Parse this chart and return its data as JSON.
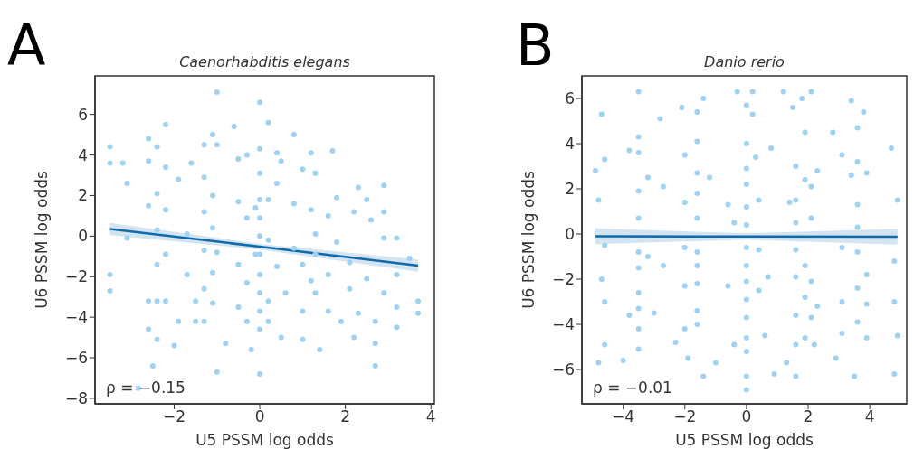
{
  "chart_data": [
    {
      "type": "scatter",
      "title": "Caenorhabditis elegans",
      "xlabel": "U5 PSSM log odds",
      "ylabel": "U6 PSSM log odds",
      "annotations": [
        "A",
        "ρ = −0.15"
      ],
      "xlim": [
        -3.85,
        4.08
      ],
      "xticks": [
        -2,
        0,
        2,
        4
      ],
      "ylim": [
        -8.27,
        7.9
      ],
      "yticks": [
        -8,
        -6,
        -4,
        -2,
        0,
        2,
        4,
        6
      ],
      "series": [
        {
          "marker": "circle",
          "color": "#9fd2f0",
          "x": [
            -3.5,
            -3.5,
            -3.5,
            -3.5,
            -3.2,
            -3.1,
            -3.1,
            -2.84,
            -2.6,
            -2.6,
            -2.6,
            -2.6,
            -2.6,
            -2.5,
            -2.4,
            -2.4,
            -2.4,
            -2.4,
            -2.4,
            -2.4,
            -2.2,
            -2.2,
            -2.2,
            -2.2,
            -2.2,
            -2.0,
            -1.9,
            -1.9,
            -1.7,
            -1.7,
            -1.6,
            -1.5,
            -1.5,
            -1.3,
            -1.3,
            -1.3,
            -1.3,
            -1.3,
            -1.3,
            -1.1,
            -1.1,
            -1.1,
            -1.1,
            -1.1,
            -1.0,
            -1.0,
            -1.0,
            -1.0,
            -0.8,
            -0.6,
            -0.5,
            -0.5,
            -0.5,
            -0.5,
            -0.3,
            -0.3,
            -0.3,
            -0.3,
            -0.2,
            -0.1,
            -0.1,
            0,
            0,
            0,
            0,
            0,
            0,
            0,
            0,
            0,
            0,
            0,
            0,
            0.2,
            0.2,
            0.2,
            0.2,
            0.2,
            0.4,
            0.4,
            0.4,
            0.5,
            0.5,
            0.6,
            0.8,
            0.8,
            0.8,
            1.0,
            1.0,
            1.0,
            1.0,
            1.2,
            1.2,
            1.2,
            1.3,
            1.3,
            1.3,
            1.3,
            1.4,
            1.6,
            1.6,
            1.6,
            1.7,
            1.8,
            1.8,
            1.9,
            2.1,
            2.1,
            2.2,
            2.2,
            2.3,
            2.3,
            2.5,
            2.5,
            2.6,
            2.7,
            2.7,
            2.7,
            2.9,
            2.9,
            2.9,
            2.9,
            3.2,
            3.2,
            3.2,
            3.2,
            3.5,
            3.7,
            3.7
          ],
          "values": [
            4.4,
            3.6,
            -1.9,
            -2.7,
            3.6,
            2.6,
            -0.1,
            -7.5,
            4.8,
            3.7,
            1.5,
            -3.2,
            -4.6,
            -6.4,
            4.4,
            2.1,
            0.3,
            -1.4,
            -3.2,
            -5.1,
            5.5,
            3.4,
            1.3,
            -0.9,
            -3.2,
            -5.4,
            2.8,
            -4.2,
            0.1,
            -1.9,
            3.6,
            -3.2,
            -4.2,
            4.5,
            2.9,
            1.2,
            -0.7,
            -2.6,
            -4.2,
            5.0,
            2.0,
            0.4,
            -1.8,
            -3.3,
            7.1,
            4.5,
            -0.8,
            -6.7,
            -5.3,
            5.4,
            3.8,
            1.7,
            -1.4,
            -3.5,
            4.0,
            0.9,
            -2.3,
            -4.2,
            -5.6,
            1.4,
            -0.9,
            6.6,
            4.3,
            3.1,
            1.8,
            0.9,
            0,
            -0.9,
            -1.9,
            -2.8,
            -3.7,
            -4.6,
            -6.8,
            5.6,
            1.8,
            -0.2,
            -3.2,
            -4.2,
            4.1,
            2.6,
            -1.5,
            -5.0,
            3.7,
            -2.8,
            5.0,
            1.6,
            -0.6,
            3.3,
            -1.4,
            -3.7,
            -5.1,
            4.1,
            1.3,
            -2.2,
            3.1,
            0.1,
            -0.9,
            -2.8,
            -5.6,
            1.0,
            -1.9,
            -3.7,
            4.2,
            1.9,
            -0.3,
            -4.2,
            -1.3,
            -2.6,
            1.2,
            -5.0,
            2.4,
            -3.8,
            1.8,
            -2.1,
            0.8,
            -5.3,
            -6.4,
            -4.2,
            2.5,
            1.2,
            -0.1,
            -2.8,
            -0.1,
            -1.9,
            -3.5,
            -4.5,
            -1.1,
            -3.2,
            -3.8
          ]
        },
        {
          "type": "line",
          "color": "#0f6aac",
          "x": [
            -3.5,
            0,
            3.7
          ],
          "values": [
            0.35,
            -0.52,
            -1.45
          ],
          "lower": [
            0.05,
            -0.66,
            -1.75
          ],
          "upper": [
            0.65,
            -0.38,
            -1.15
          ]
        }
      ]
    },
    {
      "type": "scatter",
      "title": "Danio rerio",
      "xlabel": "U5 PSSM log odds",
      "ylabel": "U6 PSSM log odds",
      "annotations": [
        "B",
        "ρ = −0.01"
      ],
      "xlim": [
        -5.34,
        5.2
      ],
      "xticks": [
        -4,
        -2,
        0,
        2,
        4
      ],
      "ylim": [
        -7.52,
        7.0
      ],
      "yticks": [
        -6,
        -4,
        -2,
        0,
        2,
        4,
        6
      ],
      "series": [
        {
          "marker": "circle",
          "color": "#9fd2f0",
          "x": [
            -4.9,
            -4.8,
            -4.8,
            -4.7,
            -4.6,
            -4.6,
            -4.6,
            -4.7,
            -4.6,
            -4.0,
            -3.8,
            -3.8,
            -3.5,
            -3.5,
            -3.5,
            -3.5,
            -3.5,
            -3.5,
            -3.5,
            -3.5,
            -3.5,
            -3.5,
            -3.5,
            -3.2,
            -3.2,
            -3.0,
            -2.8,
            -2.7,
            -2.7,
            -2.3,
            -2.1,
            -2.0,
            -2.0,
            -2.0,
            -2.0,
            -2.0,
            -1.9,
            -1.6,
            -1.6,
            -1.6,
            -1.6,
            -1.6,
            -1.6,
            -1.6,
            -1.6,
            -1.6,
            -1.6,
            -1.4,
            -1.4,
            -1.2,
            -1.0,
            -0.6,
            -0.6,
            -0.4,
            -0.4,
            -0.3,
            0,
            0,
            0,
            0,
            0,
            0,
            0,
            0,
            0,
            0,
            0,
            0,
            0,
            0,
            0,
            0.2,
            0.2,
            0.3,
            0.4,
            0.4,
            0.4,
            0.6,
            0.7,
            0.8,
            0.9,
            1.2,
            1.3,
            1.4,
            1.5,
            1.6,
            1.6,
            1.6,
            1.6,
            1.6,
            1.6,
            1.6,
            1.6,
            1.8,
            1.9,
            1.9,
            1.9,
            1.9,
            1.9,
            2.1,
            2.1,
            2.1,
            2.1,
            2.1,
            2.2,
            2.3,
            2.3,
            2.8,
            2.9,
            3.1,
            3.1,
            3.1,
            3.1,
            3.4,
            3.4,
            3.5,
            3.6,
            3.6,
            3.6,
            3.6,
            3.6,
            3.6,
            3.6,
            3.8,
            3.9,
            3.9,
            3.9,
            3.9,
            4.7,
            4.8,
            4.8,
            4.8,
            4.9,
            4.9
          ],
          "values": [
            2.8,
            1.5,
            -5.7,
            5.3,
            3.3,
            -0.5,
            -3.0,
            -2.0,
            -4.9,
            -5.6,
            3.7,
            -3.6,
            6.3,
            4.3,
            3.6,
            1.9,
            0.7,
            -0.8,
            -1.5,
            -2.6,
            -3.3,
            -4.2,
            -5.1,
            2.5,
            -1.0,
            -3.5,
            5.1,
            2.1,
            -1.4,
            -4.8,
            5.6,
            3.5,
            1.4,
            -0.6,
            -2.3,
            -4.2,
            -5.5,
            5.4,
            4.1,
            2.7,
            1.8,
            0.7,
            -0.8,
            -1.4,
            -2.2,
            -3.4,
            -4.0,
            6.0,
            -6.3,
            2.5,
            -5.7,
            -2.3,
            1.3,
            0.5,
            -4.9,
            6.3,
            5.7,
            4.0,
            2.9,
            2.2,
            1.2,
            0.4,
            -0.6,
            -1.4,
            -2.1,
            -2.9,
            -3.7,
            -4.6,
            -5.2,
            -6.3,
            -6.9,
            6.3,
            5.3,
            3.4,
            1.5,
            -0.7,
            -2.5,
            -4.5,
            -1.9,
            3.8,
            -6.2,
            6.3,
            -5.7,
            1.4,
            5.6,
            3.0,
            1.5,
            0.5,
            -0.7,
            -1.9,
            -3.6,
            -4.9,
            -6.3,
            6.0,
            4.5,
            2.4,
            -1.4,
            -2.8,
            -4.6,
            6.3,
            2.1,
            0.7,
            -2.1,
            -3.7,
            -4.9,
            -3.2,
            2.8,
            4.5,
            -5.5,
            3.5,
            -0.6,
            -3.0,
            -4.4,
            5.9,
            2.6,
            -6.3,
            4.7,
            3.2,
            1.3,
            0.3,
            -0.8,
            -2.4,
            -3.9,
            5.4,
            2.7,
            -1.8,
            -3.1,
            -4.6,
            3.8,
            -1.2,
            -3.0,
            -6.2,
            1.5,
            -4.5
          ]
        },
        {
          "type": "line",
          "color": "#0f6aac",
          "x": [
            -4.9,
            0,
            4.9
          ],
          "values": [
            -0.1,
            -0.11,
            -0.12
          ],
          "lower": [
            -0.45,
            -0.25,
            -0.47
          ],
          "upper": [
            0.25,
            0.03,
            0.23
          ]
        }
      ]
    }
  ]
}
